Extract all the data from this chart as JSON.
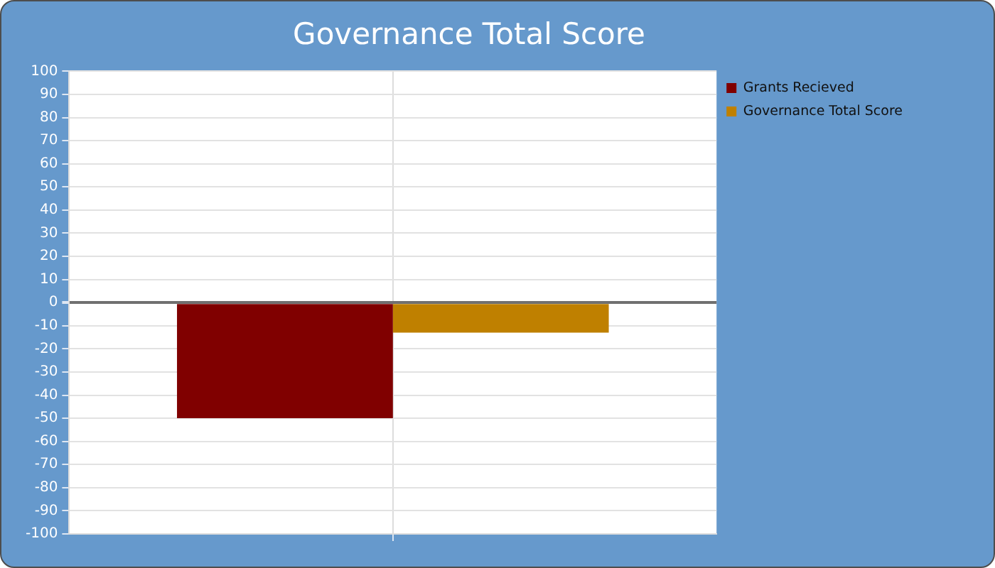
{
  "chart_data": {
    "type": "bar",
    "title": "Governance Total Score",
    "categories": [
      null
    ],
    "series": [
      {
        "name": "Grants Recieved",
        "color": "#800000",
        "values": [
          -50
        ]
      },
      {
        "name": "Governance Total Score",
        "color": "#bf8000",
        "values": [
          -13
        ]
      }
    ],
    "ylim": [
      -100,
      100
    ],
    "yticks": [
      -100,
      -90,
      -80,
      -70,
      -60,
      -50,
      -40,
      -30,
      -20,
      -10,
      0,
      10,
      20,
      30,
      40,
      50,
      60,
      70,
      80,
      90,
      100
    ],
    "grid": true,
    "legend": "top right"
  }
}
